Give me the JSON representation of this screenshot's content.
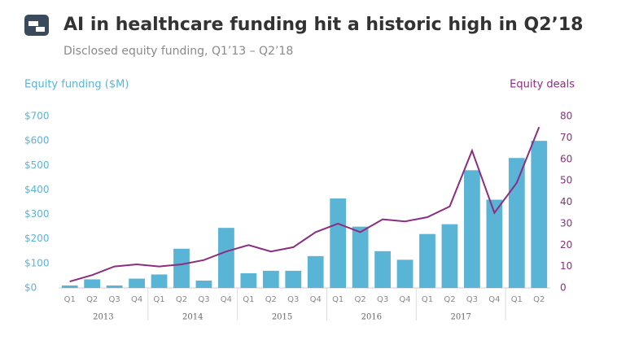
{
  "chart_data": {
    "type": "bar-line",
    "title": "AI in healthcare funding hit a historic high in Q2’18",
    "subtitle": "Disclosed equity funding, Q1’13 – Q2’18",
    "y_label": "Equity funding ($M)",
    "y2_label": "Equity deals",
    "categories": [
      "Q1",
      "Q2",
      "Q3",
      "Q4",
      "Q1",
      "Q2",
      "Q3",
      "Q4",
      "Q1",
      "Q2",
      "Q3",
      "Q4",
      "Q1",
      "Q2",
      "Q3",
      "Q4",
      "Q1",
      "Q2",
      "Q3",
      "Q4",
      "Q1",
      "Q2"
    ],
    "years": [
      "2013",
      "2014",
      "2015",
      "2016",
      "2017"
    ],
    "series": [
      {
        "name": "Equity funding ($M)",
        "color": "#5ab4d6",
        "values": [
          10,
          35,
          10,
          38,
          55,
          160,
          30,
          245,
          60,
          70,
          70,
          130,
          365,
          250,
          150,
          115,
          220,
          260,
          480,
          360,
          530,
          600
        ]
      },
      {
        "name": "Equity deals",
        "color": "#8c2d7f",
        "axis": "y2",
        "values": [
          3,
          6,
          10,
          11,
          10,
          11,
          13,
          17,
          20,
          17,
          19,
          26,
          30,
          26,
          32,
          31,
          33,
          38,
          64,
          35,
          49,
          75
        ]
      }
    ],
    "ylim": [
      0,
      700
    ],
    "yticks": [
      {
        "value": 0,
        "label": "$0"
      },
      {
        "value": 100,
        "label": "$100"
      },
      {
        "value": 200,
        "label": "$200"
      },
      {
        "value": 300,
        "label": "$300"
      },
      {
        "value": 400,
        "label": "$400"
      },
      {
        "value": 500,
        "label": "$500"
      },
      {
        "value": 600,
        "label": "$600"
      },
      {
        "value": 700,
        "label": "$700"
      }
    ],
    "y2lim": [
      0,
      80
    ],
    "y2ticks": [
      0,
      10,
      20,
      30,
      40,
      50,
      60,
      70,
      80
    ]
  }
}
